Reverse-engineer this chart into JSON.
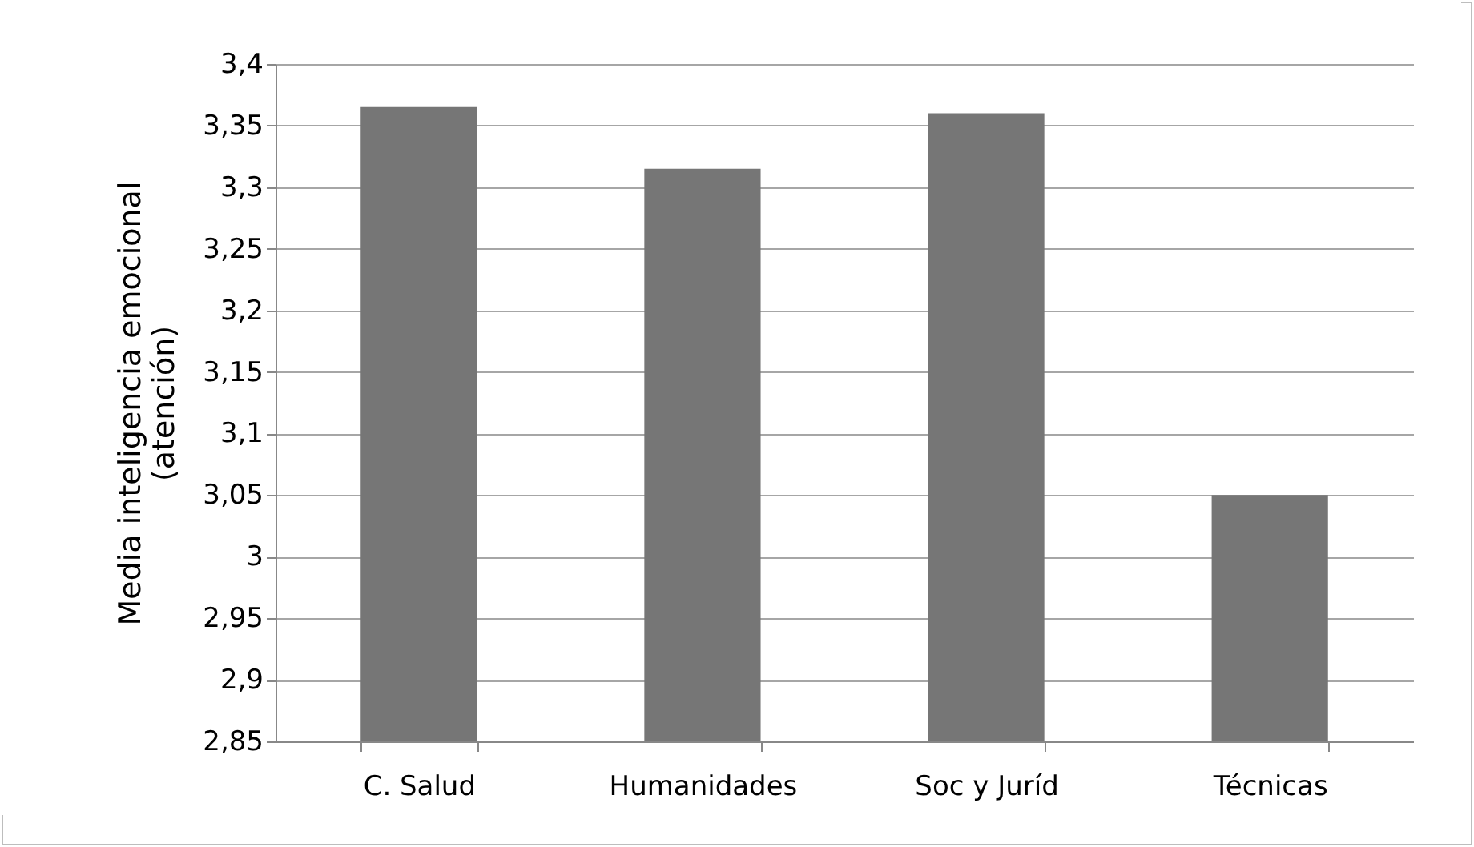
{
  "chart_data": {
    "type": "bar",
    "ylabel": "Media inteligencia emocional\n(atención)",
    "categories": [
      "C. Salud",
      "Humanidades",
      "Soc y Juríd",
      "Técnicas"
    ],
    "values": [
      3.365,
      3.315,
      3.36,
      3.05
    ],
    "color": "#767676",
    "ylim": [
      2.85,
      3.4
    ],
    "yticks": [
      {
        "value": 2.85,
        "label": "2,85"
      },
      {
        "value": 2.9,
        "label": "2,9"
      },
      {
        "value": 2.95,
        "label": "2,95"
      },
      {
        "value": 3,
        "label": "3"
      },
      {
        "value": 3.05,
        "label": "3,05"
      },
      {
        "value": 3.1,
        "label": "3,1"
      },
      {
        "value": 3.15,
        "label": "3,15"
      },
      {
        "value": 3.2,
        "label": "3,2"
      },
      {
        "value": 3.25,
        "label": "3,25"
      },
      {
        "value": 3.3,
        "label": "3,3"
      },
      {
        "value": 3.35,
        "label": "3,35"
      },
      {
        "value": 3.4,
        "label": "3,4"
      }
    ],
    "grid": "y"
  }
}
